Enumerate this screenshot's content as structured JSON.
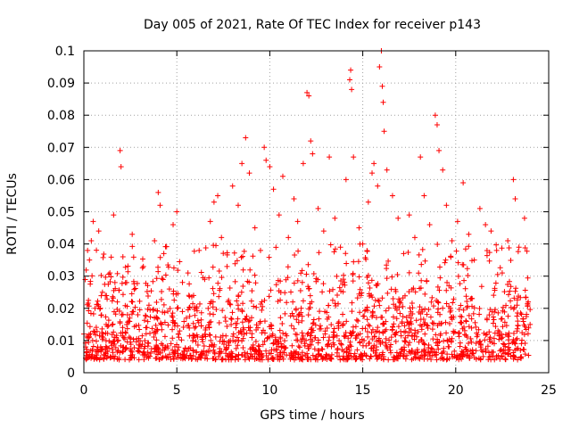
{
  "chart_data": {
    "type": "scatter",
    "title": "Day 005 of 2021, Rate Of TEC Index for receiver p143",
    "xlabel": "GPS time / hours",
    "ylabel": "ROTI / TECUs",
    "xlim": [
      0,
      25
    ],
    "ylim": [
      0,
      0.1
    ],
    "x_ticks": [
      0,
      5,
      10,
      15,
      20,
      25
    ],
    "x_tick_labels": [
      "0",
      "5",
      "10",
      "15",
      "20",
      "25"
    ],
    "y_ticks": [
      0,
      0.01,
      0.02,
      0.03,
      0.04,
      0.05,
      0.06,
      0.07,
      0.08,
      0.09,
      0.1
    ],
    "y_tick_labels": [
      "0",
      "0.01",
      "0.02",
      "0.03",
      "0.04",
      "0.05",
      "0.06",
      "0.07",
      "0.08",
      "0.09",
      "0.1"
    ],
    "grid": true,
    "marker": "plus",
    "color": "#ff0000",
    "points": [
      [
        0.0,
        0.012
      ],
      [
        0.1,
        0.008
      ],
      [
        0.2,
        0.038
      ],
      [
        0.3,
        0.035
      ],
      [
        0.4,
        0.041
      ],
      [
        0.5,
        0.047
      ],
      [
        0.6,
        0.02
      ],
      [
        0.8,
        0.044
      ],
      [
        1.0,
        0.025
      ],
      [
        1.2,
        0.015
      ],
      [
        1.4,
        0.031
      ],
      [
        1.6,
        0.049
      ],
      [
        1.8,
        0.022
      ],
      [
        1.95,
        0.069
      ],
      [
        2.0,
        0.064
      ],
      [
        2.1,
        0.036
      ],
      [
        2.3,
        0.028
      ],
      [
        2.6,
        0.043
      ],
      [
        2.9,
        0.018
      ],
      [
        3.2,
        0.033
      ],
      [
        3.5,
        0.021
      ],
      [
        3.8,
        0.041
      ],
      [
        4.0,
        0.056
      ],
      [
        4.1,
        0.052
      ],
      [
        4.3,
        0.037
      ],
      [
        4.6,
        0.026
      ],
      [
        4.8,
        0.046
      ],
      [
        5.0,
        0.05
      ],
      [
        5.3,
        0.019
      ],
      [
        5.6,
        0.031
      ],
      [
        5.9,
        0.024
      ],
      [
        6.2,
        0.038
      ],
      [
        6.5,
        0.029
      ],
      [
        6.8,
        0.047
      ],
      [
        7.0,
        0.053
      ],
      [
        7.2,
        0.055
      ],
      [
        7.4,
        0.042
      ],
      [
        7.7,
        0.033
      ],
      [
        8.0,
        0.058
      ],
      [
        8.3,
        0.052
      ],
      [
        8.5,
        0.065
      ],
      [
        8.7,
        0.073
      ],
      [
        8.9,
        0.062
      ],
      [
        9.2,
        0.045
      ],
      [
        9.5,
        0.038
      ],
      [
        9.7,
        0.07
      ],
      [
        9.8,
        0.066
      ],
      [
        10.0,
        0.064
      ],
      [
        10.2,
        0.057
      ],
      [
        10.5,
        0.049
      ],
      [
        10.7,
        0.061
      ],
      [
        11.0,
        0.042
      ],
      [
        11.3,
        0.054
      ],
      [
        11.5,
        0.047
      ],
      [
        11.8,
        0.065
      ],
      [
        12.0,
        0.087
      ],
      [
        12.1,
        0.086
      ],
      [
        12.2,
        0.072
      ],
      [
        12.3,
        0.068
      ],
      [
        12.6,
        0.051
      ],
      [
        12.9,
        0.044
      ],
      [
        13.2,
        0.067
      ],
      [
        13.5,
        0.048
      ],
      [
        13.8,
        0.039
      ],
      [
        14.1,
        0.06
      ],
      [
        14.3,
        0.091
      ],
      [
        14.35,
        0.094
      ],
      [
        14.4,
        0.088
      ],
      [
        14.5,
        0.067
      ],
      [
        14.8,
        0.045
      ],
      [
        15.0,
        0.04
      ],
      [
        15.3,
        0.053
      ],
      [
        15.5,
        0.062
      ],
      [
        15.6,
        0.065
      ],
      [
        15.8,
        0.058
      ],
      [
        15.9,
        0.095
      ],
      [
        16.0,
        0.1
      ],
      [
        16.05,
        0.089
      ],
      [
        16.1,
        0.084
      ],
      [
        16.15,
        0.075
      ],
      [
        16.3,
        0.063
      ],
      [
        16.6,
        0.055
      ],
      [
        16.9,
        0.048
      ],
      [
        17.2,
        0.037
      ],
      [
        17.5,
        0.049
      ],
      [
        17.8,
        0.042
      ],
      [
        18.1,
        0.067
      ],
      [
        18.3,
        0.055
      ],
      [
        18.6,
        0.046
      ],
      [
        18.9,
        0.08
      ],
      [
        19.0,
        0.077
      ],
      [
        19.1,
        0.069
      ],
      [
        19.3,
        0.063
      ],
      [
        19.5,
        0.052
      ],
      [
        19.8,
        0.041
      ],
      [
        20.1,
        0.047
      ],
      [
        20.4,
        0.059
      ],
      [
        20.7,
        0.043
      ],
      [
        21.0,
        0.035
      ],
      [
        21.3,
        0.051
      ],
      [
        21.6,
        0.046
      ],
      [
        21.9,
        0.044
      ],
      [
        22.2,
        0.038
      ],
      [
        22.5,
        0.031
      ],
      [
        22.8,
        0.041
      ],
      [
        23.1,
        0.06
      ],
      [
        23.2,
        0.054
      ],
      [
        23.4,
        0.039
      ],
      [
        23.7,
        0.048
      ],
      [
        23.9,
        0.022
      ],
      [
        24.0,
        0.015
      ]
    ]
  }
}
